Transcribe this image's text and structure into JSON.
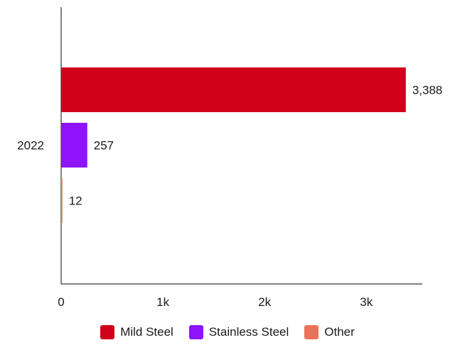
{
  "chart_data": {
    "type": "bar",
    "orientation": "horizontal",
    "categories": [
      "2022"
    ],
    "series": [
      {
        "name": "Mild Steel",
        "values": [
          3388
        ],
        "labels": [
          "3,388"
        ],
        "color": "#d0021b"
      },
      {
        "name": "Stainless Steel",
        "values": [
          257
        ],
        "labels": [
          "257"
        ],
        "color": "#9013fe"
      },
      {
        "name": "Other",
        "values": [
          12
        ],
        "labels": [
          "12"
        ],
        "color": "#e8735a"
      }
    ],
    "xlim": [
      0,
      3550
    ],
    "xticks": [
      {
        "value": 0,
        "label": "0"
      },
      {
        "value": 1000,
        "label": "1k"
      },
      {
        "value": 2000,
        "label": "2k"
      },
      {
        "value": 3000,
        "label": "3k"
      }
    ],
    "legend_position": "bottom",
    "grid": false,
    "title": "",
    "xlabel": "",
    "ylabel": ""
  }
}
